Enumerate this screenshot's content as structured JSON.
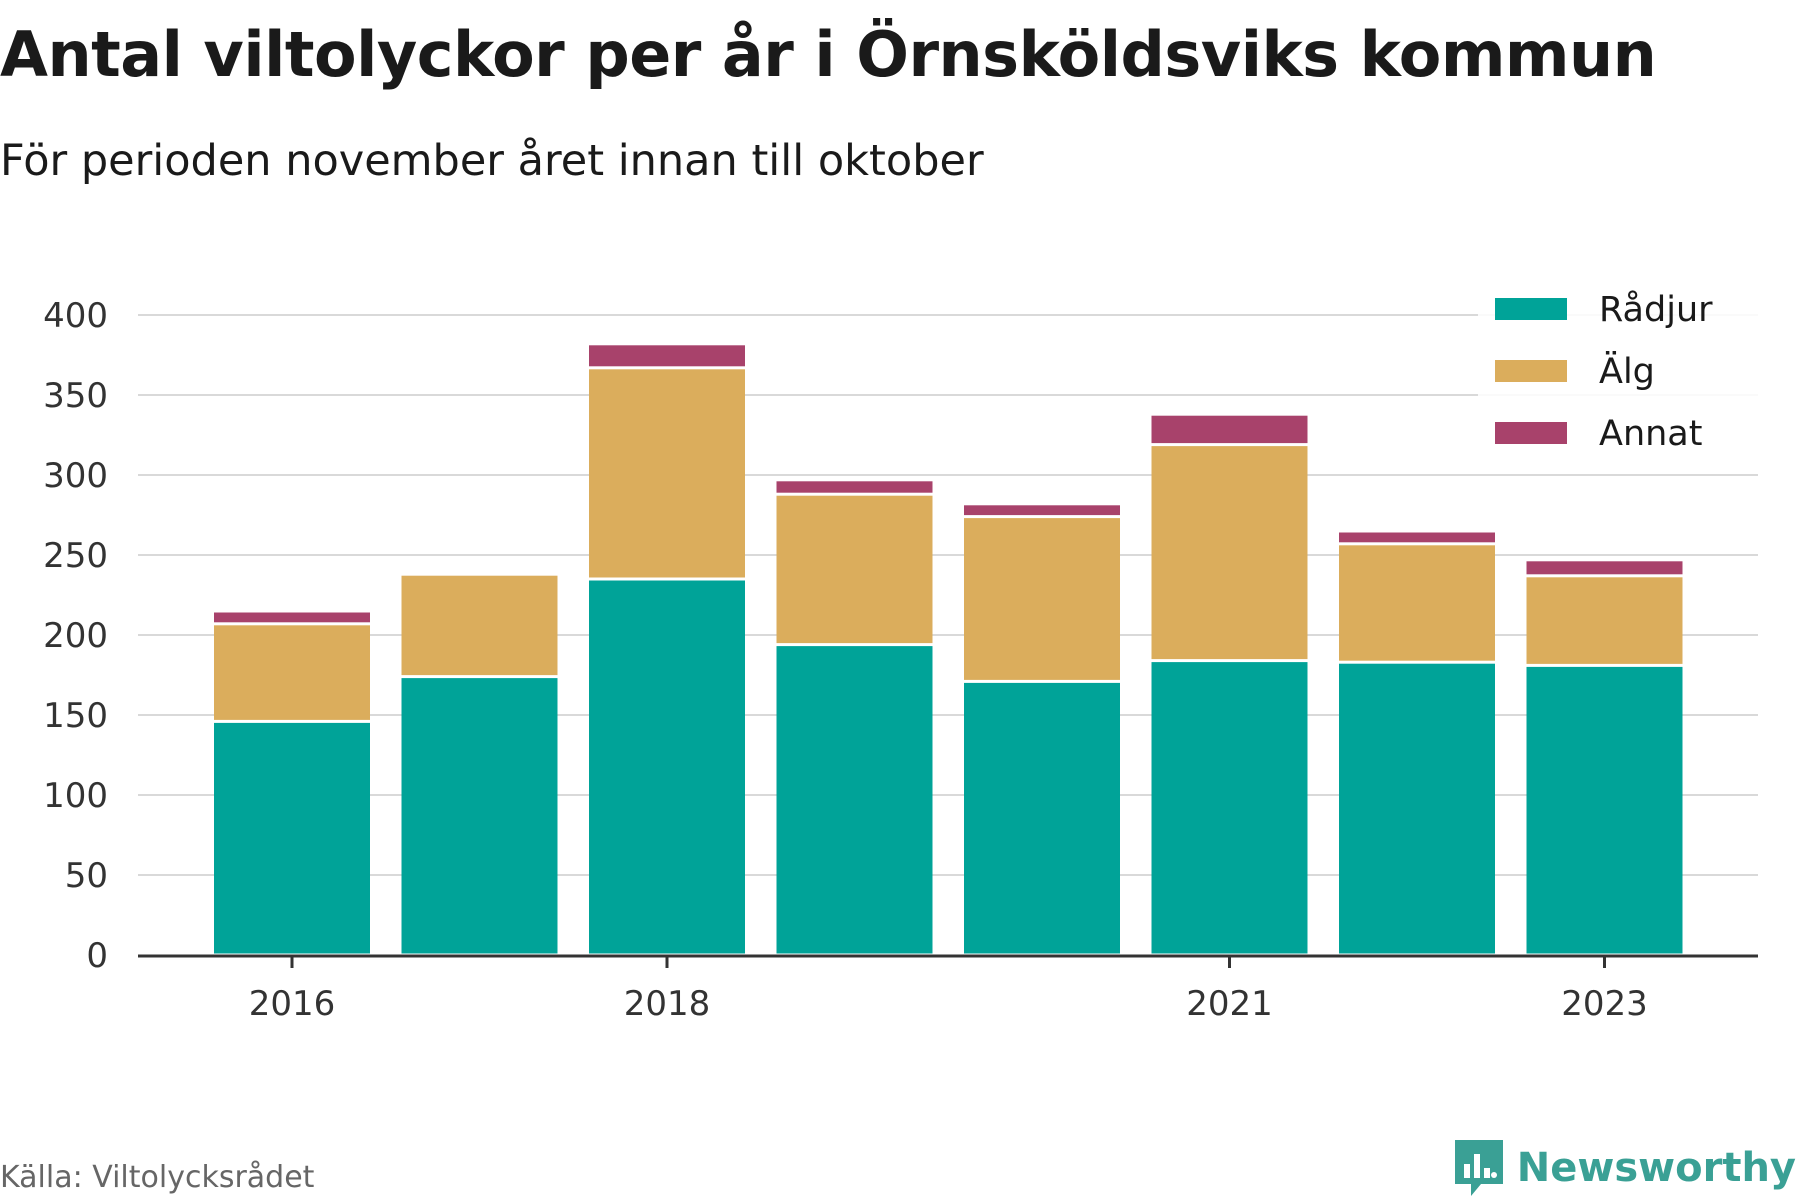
{
  "title": "Antal viltolyckor per år i Örnsköldsviks kommun",
  "subtitle": "För perioden november året innan till oktober",
  "source": "Källa: Viltolycksrådet",
  "brand": "Newsworthy",
  "colors": {
    "Rådjur": "#00a398",
    "Älg": "#dbad5c",
    "Annat": "#a8426b",
    "grid": "#d9d9d9",
    "axis": "#333333",
    "brand": "#3aa095"
  },
  "chart_data": {
    "type": "bar",
    "stacked": true,
    "categories": [
      "2016",
      "2017",
      "2018",
      "2019",
      "2020",
      "2021",
      "2022",
      "2023"
    ],
    "x_tick_labels": [
      "2016",
      "2018",
      "2021",
      "2023"
    ],
    "series": [
      {
        "name": "Rådjur",
        "values": [
          146,
          174,
          235,
          194,
          171,
          184,
          183,
          181
        ]
      },
      {
        "name": "Älg",
        "values": [
          61,
          64,
          132,
          94,
          103,
          135,
          74,
          56
        ]
      },
      {
        "name": "Annat",
        "values": [
          8,
          0,
          15,
          9,
          8,
          19,
          8,
          10
        ]
      }
    ],
    "y_ticks": [
      0,
      50,
      100,
      150,
      200,
      250,
      300,
      350,
      400
    ],
    "ylim": [
      0,
      400
    ],
    "grid": true,
    "legend_position": "top-right"
  }
}
